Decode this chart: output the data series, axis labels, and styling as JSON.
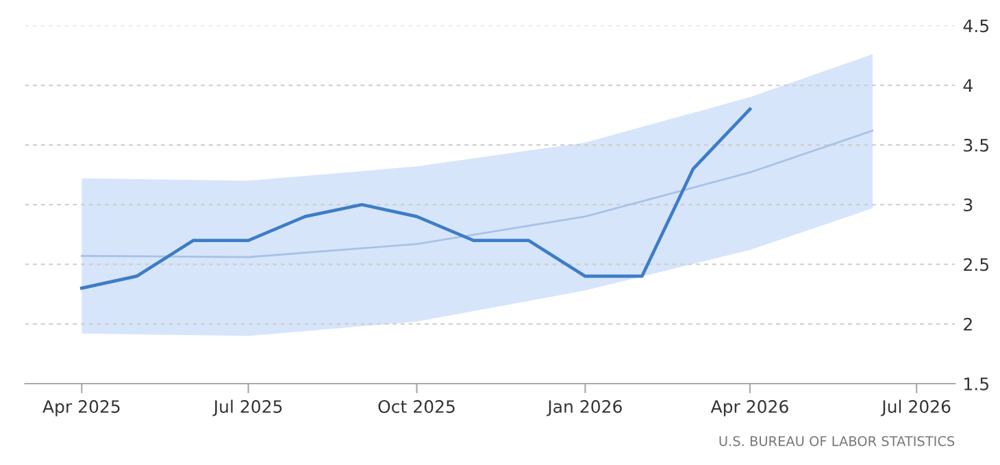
{
  "chart_data": {
    "type": "line",
    "x": [
      "2025-04",
      "2025-05",
      "2025-06",
      "2025-07",
      "2025-08",
      "2025-09",
      "2025-10",
      "2025-11",
      "2025-12",
      "2026-01",
      "2026-02",
      "2026-03",
      "2026-04"
    ],
    "series": [
      {
        "color": "#3d7dc8",
        "values": [
          2.3,
          2.4,
          2.7,
          2.7,
          2.9,
          3.0,
          2.9,
          2.7,
          2.7,
          2.4,
          2.4,
          3.3,
          3.8
        ]
      },
      {
        "color": "#a9c2e6",
        "x": [
          "2025-04",
          "2025-07",
          "2025-10",
          "2026-01",
          "2026-04",
          "2026-06-07"
        ],
        "values": [
          2.57,
          2.56,
          2.67,
          2.9,
          3.27,
          3.62
        ],
        "lower": [
          1.92,
          1.9,
          2.02,
          2.28,
          2.62,
          2.97
        ],
        "upper": [
          3.22,
          3.2,
          3.32,
          3.52,
          3.9,
          4.26
        ]
      }
    ],
    "xlim": [
      "2025-03-01",
      "2026-07-22"
    ],
    "xticks": [
      {
        "value": "2025-04",
        "label": "Apr 2025"
      },
      {
        "value": "2025-07",
        "label": "Jul 2025"
      },
      {
        "value": "2025-10",
        "label": "Oct 2025"
      },
      {
        "value": "2026-01",
        "label": "Jan 2026"
      },
      {
        "value": "2026-04",
        "label": "Apr 2026"
      },
      {
        "value": "2026-07",
        "label": "Jul 2026"
      }
    ],
    "ylim": [
      1.5,
      4.5
    ],
    "yticks": [
      1.5,
      2,
      2.5,
      3,
      3.5,
      4,
      4.5
    ],
    "grid": "y",
    "annotations": [
      "U.S. BUREAU OF LABOR STATISTICS"
    ]
  }
}
